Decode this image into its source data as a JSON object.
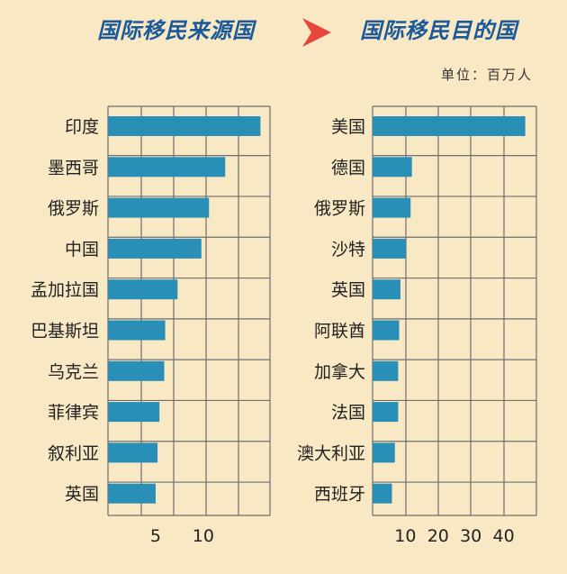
{
  "colors": {
    "background": "#f9e8c4",
    "title": "#1a5a9a",
    "bar": "#2a8fb6",
    "grid": "#6e6e6e",
    "arrow": "#e8463c",
    "text": "#222222"
  },
  "header": {
    "left_title": "国际移民来源国",
    "right_title": "国际移民目的国",
    "arrow_icon": "arrow-right-icon",
    "unit": "单位：百万人"
  },
  "chart_data": [
    {
      "type": "bar",
      "orientation": "horizontal",
      "title": "国际移民来源国",
      "categories": [
        "印度",
        "墨西哥",
        "俄罗斯",
        "中国",
        "孟加拉国",
        "巴基斯坦",
        "乌克兰",
        "菲律宾",
        "叙利亚",
        "英国"
      ],
      "values": [
        16,
        12.3,
        10.6,
        9.8,
        7.3,
        6.0,
        5.9,
        5.4,
        5.2,
        5.0
      ],
      "xlim": [
        0,
        17
      ],
      "xticks": [
        5,
        10
      ],
      "grid": true
    },
    {
      "type": "bar",
      "orientation": "horizontal",
      "title": "国际移民目的国",
      "categories": [
        "美国",
        "德国",
        "俄罗斯",
        "沙特",
        "英国",
        "阿联酋",
        "加拿大",
        "法国",
        "澳大利亚",
        "西班牙"
      ],
      "values": [
        46.6,
        12.0,
        11.6,
        10.2,
        8.5,
        8.1,
        7.8,
        7.8,
        6.8,
        5.9
      ],
      "xlim": [
        0,
        50
      ],
      "xticks": [
        10,
        20,
        30,
        40
      ],
      "grid": true
    }
  ]
}
